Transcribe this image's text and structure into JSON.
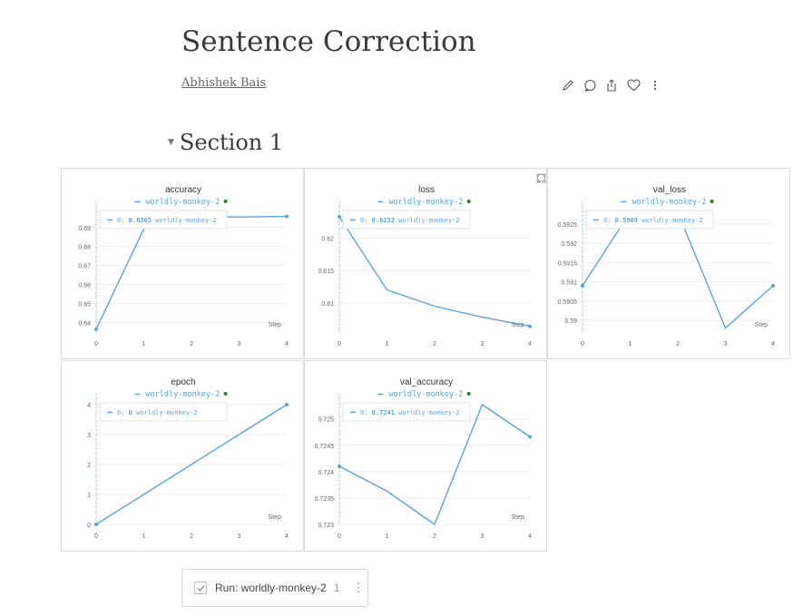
{
  "report": {
    "title": "Sentence Correction",
    "author": "Abhishek Bais",
    "actions": [
      {
        "icon": "pencil-icon"
      },
      {
        "icon": "comment-icon"
      },
      {
        "icon": "share-icon"
      },
      {
        "icon": "heart-icon"
      },
      {
        "icon": "more-vertical-icon"
      }
    ]
  },
  "section": {
    "title": "Section 1"
  },
  "colors": {
    "series": "#5ca3d6",
    "run_dot": "#2e7d32",
    "grid": "#eeeeee"
  },
  "run": {
    "label": "Run: worldly-monkey-2",
    "count": "1"
  },
  "chart_data": [
    {
      "type": "line",
      "title": "accuracy",
      "legend": "worldly-monkey-2",
      "xlabel": "Step",
      "x": [
        0,
        1,
        2,
        3,
        4
      ],
      "values": [
        0.6365,
        0.6893,
        0.696,
        0.6955,
        0.6958
      ],
      "ylim": [
        0.635,
        0.698
      ],
      "yticks": [
        0.64,
        0.65,
        0.66,
        0.67,
        0.68,
        0.69
      ],
      "yticklabels": [
        "0.64",
        "0.65",
        "0.66",
        "0.67",
        "0.68",
        "0.69"
      ],
      "xticks": [
        0,
        1,
        2,
        3,
        4
      ],
      "tooltip": {
        "prefix": "0:",
        "value": "0.6365",
        "run": "worldly-monkey-2"
      }
    },
    {
      "type": "line",
      "title": "loss",
      "legend": "worldly-monkey-2",
      "xlabel": "Step",
      "x": [
        0,
        1,
        2,
        3,
        4
      ],
      "values": [
        0.6233,
        0.612,
        0.6095,
        0.6078,
        0.6064
      ],
      "ylim": [
        0.6055,
        0.624
      ],
      "yticks": [
        0.61,
        0.615,
        0.62
      ],
      "yticklabels": [
        "0.61",
        "0.615",
        "0.62"
      ],
      "xticks": [
        0,
        1,
        2,
        3,
        4
      ],
      "tooltip": {
        "prefix": "0:",
        "value": "0.6233",
        "run": "worldly-monkey-2"
      }
    },
    {
      "type": "line",
      "title": "val_loss",
      "legend": "worldly-monkey-2",
      "xlabel": "Step",
      "x": [
        0,
        1,
        2,
        3,
        4
      ],
      "values": [
        0.5909,
        0.5928,
        0.5928,
        0.5898,
        0.5909
      ],
      "ylim": [
        0.5897,
        0.5928
      ],
      "yticks": [
        0.59,
        0.5905,
        0.591,
        0.5915,
        0.592,
        0.5925
      ],
      "yticklabels": [
        "0.59",
        "0.5905",
        "0.591",
        "0.5915",
        "0.592",
        "0.5925"
      ],
      "xticks": [
        0,
        1,
        2,
        3,
        4
      ],
      "tooltip": {
        "prefix": "0:",
        "value": "0.5909",
        "run": "worldly-monkey-2"
      }
    },
    {
      "type": "line",
      "title": "epoch",
      "legend": "worldly-monkey-2",
      "xlabel": "Step",
      "x": [
        0,
        1,
        2,
        3,
        4
      ],
      "values": [
        0,
        1,
        2,
        3,
        4
      ],
      "ylim": [
        0,
        4
      ],
      "yticks": [
        0,
        1,
        2,
        3,
        4
      ],
      "yticklabels": [
        "0",
        "1",
        "2",
        "3",
        "4"
      ],
      "xticks": [
        0,
        1,
        2,
        3,
        4
      ],
      "tooltip": {
        "prefix": "0:",
        "value": "0",
        "run": "worldly-monkey-2"
      }
    },
    {
      "type": "line",
      "title": "val_accuracy",
      "legend": "worldly-monkey-2",
      "xlabel": "Step",
      "x": [
        0,
        1,
        2,
        3,
        4
      ],
      "values": [
        0.7241,
        0.72363,
        0.723,
        0.72527,
        0.72466
      ],
      "ylim": [
        0.723,
        0.72527
      ],
      "yticks": [
        0.723,
        0.7235,
        0.724,
        0.7245,
        0.725
      ],
      "yticklabels": [
        "0.723",
        "0.7235",
        "0.724",
        "0.7245",
        "0.725"
      ],
      "xticks": [
        0,
        1,
        2,
        3,
        4
      ],
      "tooltip": {
        "prefix": "0:",
        "value": "0.7241",
        "run": "worldly-monkey-2"
      }
    }
  ]
}
